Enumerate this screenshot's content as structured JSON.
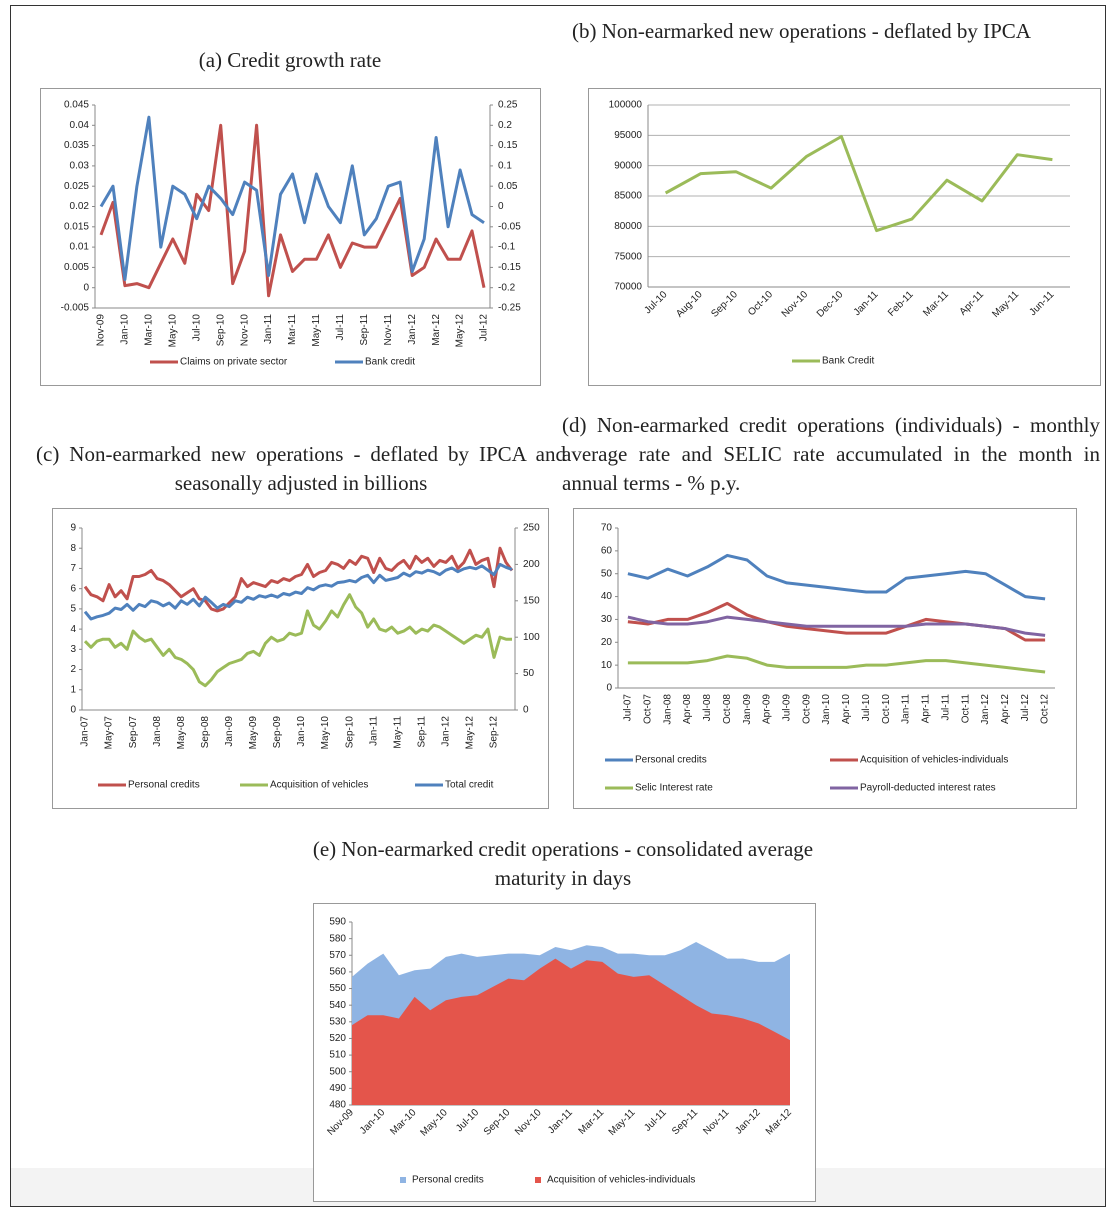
{
  "chart_data": [
    {
      "type": "line",
      "title": "(a) Credit growth rate",
      "categories": [
        "Nov-09",
        null,
        "Jan-10",
        null,
        "Mar-10",
        null,
        "May-10",
        null,
        "Jul-10",
        null,
        "Sep-10",
        null,
        "Nov-10",
        null,
        "Jan-11",
        null,
        "Mar-11",
        null,
        "May-11",
        null,
        "Jul-11",
        null,
        "Sep-11",
        null,
        "Nov-11",
        null,
        "Jan-12",
        null,
        "Mar-12",
        null,
        "May-12",
        null,
        "Jul-12"
      ],
      "series": [
        {
          "name": "Claims on private sector",
          "color": "#c0504d",
          "values": [
            0.013,
            0.021,
            0.0005,
            0.001,
            0,
            0.006,
            0.012,
            0.006,
            0.023,
            0.019,
            0.04,
            0.001,
            0.009,
            0.04,
            -0.002,
            0.013,
            0.004,
            0.007,
            0.007,
            0.013,
            0.005,
            0.011,
            0.01,
            0.01,
            0.016,
            0.022,
            0.003,
            0.005,
            0.012,
            0.007,
            0.007,
            0.014,
            0
          ]
        },
        {
          "name": "Bank credit",
          "color": "#4f81bd",
          "axis": "y2",
          "values": [
            0,
            0.05,
            -0.18,
            0.05,
            0.22,
            -0.1,
            0.05,
            0.03,
            -0.03,
            0.05,
            0.02,
            -0.02,
            0.06,
            0.04,
            -0.17,
            0.03,
            0.08,
            -0.04,
            0.08,
            0,
            -0.04,
            0.1,
            -0.07,
            -0.03,
            0.05,
            0.06,
            -0.16,
            -0.08,
            0.17,
            -0.05,
            0.09,
            -0.02,
            -0.04
          ]
        }
      ],
      "ylim": [
        -0.005,
        0.045
      ],
      "yticks": [
        -0.005,
        0,
        0.005,
        0.01,
        0.015,
        0.02,
        0.025,
        0.03,
        0.035,
        0.04,
        0.045
      ],
      "y2lim": [
        -0.25,
        0.25
      ],
      "y2ticks": [
        -0.25,
        -0.2,
        -0.15,
        -0.1,
        -0.05,
        0,
        0.05,
        0.1,
        0.15,
        0.2,
        0.25
      ],
      "grid": false
    },
    {
      "type": "line",
      "title": "(b) Non-earmarked new operations - deflated by IPCA",
      "categories": [
        "Jul-10",
        "Aug-10",
        "Sep-10",
        "Oct-10",
        "Nov-10",
        "Dec-10",
        "Jan-11",
        "Feb-11",
        "Mar-11",
        "Apr-11",
        "May-11",
        "Jun-11"
      ],
      "series": [
        {
          "name": "Bank Credit",
          "color": "#9bbb59",
          "values": [
            85500,
            88700,
            89000,
            86300,
            91500,
            94800,
            79300,
            81200,
            87600,
            84200,
            91800,
            91000
          ]
        }
      ],
      "ylim": [
        70000,
        100000
      ],
      "yticks": [
        70000,
        75000,
        80000,
        85000,
        90000,
        95000,
        100000
      ],
      "grid": true
    },
    {
      "type": "line",
      "title": "(c) Non-earmarked new operations - deflated by IPCA and seasonally adjusted in billions",
      "categories": [
        "Jan-07",
        null,
        null,
        null,
        "May-07",
        null,
        null,
        null,
        "Sep-07",
        null,
        null,
        null,
        "Jan-08",
        null,
        null,
        null,
        "May-08",
        null,
        null,
        null,
        "Sep-08",
        null,
        null,
        null,
        "Jan-09",
        null,
        null,
        null,
        "May-09",
        null,
        null,
        null,
        "Sep-09",
        null,
        null,
        null,
        "Jan-10",
        null,
        null,
        null,
        "May-10",
        null,
        null,
        null,
        "Sep-10",
        null,
        null,
        null,
        "Jan-11",
        null,
        null,
        null,
        "May-11",
        null,
        null,
        null,
        "Sep-11",
        null,
        null,
        null,
        "Jan-12",
        null,
        null,
        null,
        "May-12",
        null,
        null,
        null,
        "Sep-12",
        null,
        null,
        null
      ],
      "series": [
        {
          "name": "Personal credits",
          "color": "#c0504d",
          "values": [
            6.1,
            5.7,
            5.6,
            5.4,
            6.2,
            5.6,
            5.9,
            5.5,
            6.6,
            6.6,
            6.7,
            6.9,
            6.5,
            6.4,
            6.2,
            5.9,
            5.6,
            5.8,
            6.0,
            5.5,
            5.4,
            5.0,
            4.9,
            5.0,
            5.3,
            5.6,
            6.5,
            6.1,
            6.3,
            6.2,
            6.1,
            6.4,
            6.3,
            6.5,
            6.4,
            6.6,
            6.7,
            7.2,
            6.6,
            6.8,
            6.9,
            7.3,
            7.2,
            7.0,
            7.4,
            7.2,
            7.6,
            7.5,
            6.8,
            7.5,
            7.0,
            6.9,
            7.2,
            7.4,
            7.0,
            7.6,
            7.3,
            7.5,
            7.1,
            7.4,
            7.3,
            7.6,
            7.0,
            7.3,
            7.9,
            7.2,
            7.4,
            7.5,
            6.1,
            8.0,
            7.3,
            6.9
          ]
        },
        {
          "name": "Acquisition of vehicles",
          "color": "#9bbb59",
          "values": [
            3.4,
            3.1,
            3.4,
            3.5,
            3.5,
            3.1,
            3.3,
            3.0,
            3.9,
            3.6,
            3.4,
            3.5,
            3.1,
            2.7,
            3.0,
            2.6,
            2.5,
            2.3,
            2.0,
            1.4,
            1.2,
            1.5,
            1.9,
            2.1,
            2.3,
            2.4,
            2.5,
            2.8,
            2.9,
            2.7,
            3.3,
            3.6,
            3.4,
            3.5,
            3.8,
            3.7,
            3.8,
            4.9,
            4.2,
            4.0,
            4.4,
            4.9,
            4.6,
            5.2,
            5.7,
            5.1,
            4.8,
            4.1,
            4.5,
            4.0,
            3.9,
            4.1,
            3.8,
            3.9,
            4.1,
            3.8,
            4.0,
            3.9,
            4.2,
            4.1,
            3.9,
            3.7,
            3.5,
            3.3,
            3.5,
            3.7,
            3.6,
            4.0,
            2.6,
            3.6,
            3.5,
            3.5
          ]
        },
        {
          "name": "Total credit",
          "color": "#4f81bd",
          "axis": "y2",
          "values": [
            135,
            125,
            128,
            130,
            133,
            140,
            138,
            145,
            137,
            145,
            142,
            150,
            148,
            143,
            147,
            140,
            150,
            145,
            152,
            143,
            155,
            148,
            140,
            145,
            142,
            150,
            148,
            155,
            152,
            157,
            155,
            158,
            155,
            160,
            158,
            162,
            160,
            168,
            165,
            170,
            172,
            170,
            175,
            176,
            178,
            176,
            182,
            185,
            175,
            185,
            178,
            180,
            182,
            188,
            184,
            190,
            188,
            192,
            190,
            186,
            192,
            195,
            190,
            194,
            196,
            194,
            198,
            192,
            186,
            200,
            196,
            193
          ]
        }
      ],
      "ylim": [
        0,
        9
      ],
      "yticks": [
        0,
        1,
        2,
        3,
        4,
        5,
        6,
        7,
        8,
        9
      ],
      "y2lim": [
        0,
        250
      ],
      "y2ticks": [
        0,
        50,
        100,
        150,
        200,
        250
      ],
      "grid": false
    },
    {
      "type": "line",
      "title": "(d) Non-earmarked credit operations (individuals) - monthly average rate and SELIC rate accumulated in the month in annual terms - % p.y.",
      "categories": [
        "Jul-07",
        "Oct-07",
        "Jan-08",
        "Apr-08",
        "Jul-08",
        "Oct-08",
        "Jan-09",
        "Apr-09",
        "Jul-09",
        "Oct-09",
        "Jan-10",
        "Apr-10",
        "Jul-10",
        "Oct-10",
        "Jan-11",
        "Apr-11",
        "Jul-11",
        "Oct-11",
        "Jan-12",
        "Apr-12",
        "Jul-12",
        "Oct-12"
      ],
      "series": [
        {
          "name": "Personal credits",
          "color": "#4f81bd",
          "values": [
            50,
            48,
            52,
            49,
            53,
            58,
            56,
            49,
            46,
            45,
            44,
            43,
            42,
            42,
            48,
            49,
            50,
            51,
            50,
            45,
            40,
            39
          ]
        },
        {
          "name": "Acquisition of vehicles-individuals",
          "color": "#c0504d",
          "values": [
            29,
            28,
            30,
            30,
            33,
            37,
            32,
            29,
            27,
            26,
            25,
            24,
            24,
            24,
            27,
            30,
            29,
            28,
            27,
            26,
            21,
            21
          ]
        },
        {
          "name": "Selic Interest rate",
          "color": "#9bbb59",
          "values": [
            11,
            11,
            11,
            11,
            12,
            14,
            13,
            10,
            9,
            9,
            9,
            9,
            10,
            10,
            11,
            12,
            12,
            11,
            10,
            9,
            8,
            7
          ]
        },
        {
          "name": "Payroll-deducted interest rates",
          "color": "#8064a2",
          "values": [
            31,
            29,
            28,
            28,
            29,
            31,
            30,
            29,
            28,
            27,
            27,
            27,
            27,
            27,
            27,
            28,
            28,
            28,
            27,
            26,
            24,
            23
          ]
        }
      ],
      "ylim": [
        0,
        70
      ],
      "yticks": [
        0,
        10,
        20,
        30,
        40,
        50,
        60,
        70
      ],
      "grid": false
    },
    {
      "type": "area",
      "title": "(e) Non-earmarked credit operations - consolidated average maturity in days",
      "categories": [
        "Nov-09",
        null,
        "Jan-10",
        null,
        "Mar-10",
        null,
        "May-10",
        null,
        "Jul-10",
        null,
        "Sep-10",
        null,
        "Nov-10",
        null,
        "Jan-11",
        null,
        "Mar-11",
        null,
        "May-11",
        null,
        "Jul-11",
        null,
        "Sep-11",
        null,
        "Nov-11",
        null,
        "Jan-12",
        null,
        "Mar-12"
      ],
      "series": [
        {
          "name": "Personal credits",
          "color": "#8fb4e3",
          "values": [
            557,
            565,
            571,
            558,
            561,
            562,
            569,
            571,
            569,
            570,
            571,
            571,
            570,
            575,
            573,
            576,
            575,
            571,
            571,
            570,
            570,
            573,
            578,
            573,
            568,
            568,
            566,
            566,
            571
          ]
        },
        {
          "name": "Acquisition of vehicles-individuals",
          "color": "#e4554b",
          "values": [
            528,
            534,
            534,
            532,
            545,
            537,
            543,
            545,
            546,
            551,
            556,
            555,
            562,
            568,
            562,
            567,
            566,
            559,
            557,
            558,
            552,
            546,
            540,
            535,
            534,
            532,
            529,
            524,
            519
          ]
        }
      ],
      "ylim": [
        480,
        590
      ],
      "yticks": [
        480,
        490,
        500,
        510,
        520,
        530,
        540,
        550,
        560,
        570,
        580,
        590
      ],
      "grid": false
    }
  ]
}
